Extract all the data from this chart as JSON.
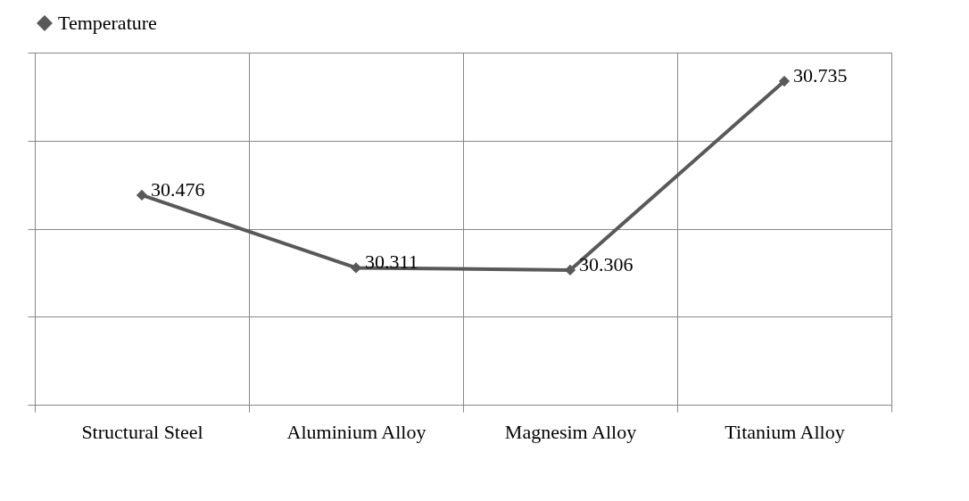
{
  "chart_data": {
    "type": "line",
    "categories": [
      "Structural Steel",
      "Aluminium Alloy",
      "Magnesim Alloy",
      "Titanium Alloy"
    ],
    "series": [
      {
        "name": "Temperature",
        "color": "#595959",
        "values": [
          30.476,
          30.311,
          30.306,
          30.735
        ]
      }
    ],
    "ylim": [
      30.0,
      30.8
    ],
    "yticks": [
      {
        "value": 30.0,
        "label": null
      },
      {
        "value": 30.2,
        "label": null
      },
      {
        "value": 30.4,
        "label": null
      },
      {
        "value": 30.6,
        "label": null
      },
      {
        "value": 30.8,
        "label": null
      }
    ],
    "tick_labels": "x",
    "grid": true,
    "legend": "top",
    "marker": "diamond",
    "line_style": "solid",
    "data_labels": true
  }
}
